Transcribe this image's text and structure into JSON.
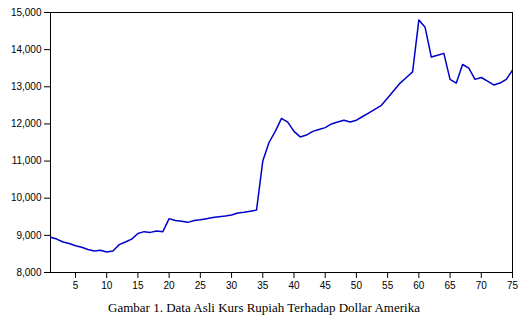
{
  "chart_data": {
    "type": "line",
    "caption": "Gambar 1. Data Asli Kurs Rupiah Terhadap Dollar Amerika",
    "x": [
      1,
      2,
      3,
      4,
      5,
      6,
      7,
      8,
      9,
      10,
      11,
      12,
      13,
      14,
      15,
      16,
      17,
      18,
      19,
      20,
      21,
      22,
      23,
      24,
      25,
      26,
      27,
      28,
      29,
      30,
      31,
      32,
      33,
      34,
      35,
      36,
      37,
      38,
      39,
      40,
      41,
      42,
      43,
      44,
      45,
      46,
      47,
      48,
      49,
      50,
      51,
      52,
      53,
      54,
      55,
      56,
      57,
      58,
      59,
      60,
      61,
      62,
      63,
      64,
      65,
      66,
      67,
      68,
      69,
      70,
      71,
      72,
      73,
      74,
      75
    ],
    "values": [
      8950,
      8900,
      8820,
      8780,
      8720,
      8680,
      8620,
      8580,
      8600,
      8550,
      8580,
      8750,
      8820,
      8900,
      9050,
      9100,
      9080,
      9120,
      9100,
      9450,
      9400,
      9380,
      9350,
      9400,
      9420,
      9450,
      9480,
      9500,
      9520,
      9550,
      9600,
      9620,
      9650,
      9680,
      11000,
      11500,
      11800,
      12150,
      12050,
      11800,
      11650,
      11700,
      11800,
      11850,
      11900,
      12000,
      12050,
      12100,
      12050,
      12100,
      12200,
      12300,
      12400,
      12500,
      12700,
      12900,
      13100,
      13250,
      13400,
      14800,
      14600,
      13800,
      13850,
      13900,
      13200,
      13100,
      13600,
      13500,
      13200,
      13250,
      13150,
      13050,
      13100,
      13200,
      13450
    ],
    "color": "#0000cc",
    "xlim": [
      1,
      75
    ],
    "xticks": [
      5,
      10,
      15,
      20,
      25,
      30,
      35,
      40,
      45,
      50,
      55,
      60,
      65,
      70,
      75
    ],
    "ylim": [
      8000,
      15000
    ],
    "yticks": [
      {
        "value": 8000,
        "label": "8,000"
      },
      {
        "value": 9000,
        "label": "9,000"
      },
      {
        "value": 10000,
        "label": "10,000"
      },
      {
        "value": 11000,
        "label": "11,000"
      },
      {
        "value": 12000,
        "label": "12,000"
      },
      {
        "value": 13000,
        "label": "13,000"
      },
      {
        "value": 14000,
        "label": "14,000"
      },
      {
        "value": 15000,
        "label": "15,000"
      }
    ]
  }
}
